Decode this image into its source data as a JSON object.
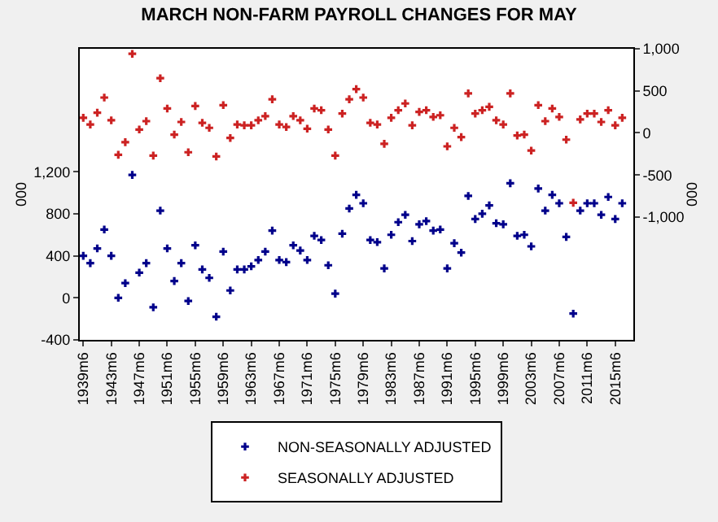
{
  "chart_data": {
    "type": "scatter",
    "title": "MARCH NON-FARM PAYROLL CHANGES FOR MAY",
    "x": [
      "1939-06",
      "1940-06",
      "1941-06",
      "1942-06",
      "1943-06",
      "1944-06",
      "1945-06",
      "1946-06",
      "1947-06",
      "1948-06",
      "1949-06",
      "1950-06",
      "1951-06",
      "1952-06",
      "1953-06",
      "1954-06",
      "1955-06",
      "1956-06",
      "1957-06",
      "1958-06",
      "1959-06",
      "1960-06",
      "1961-06",
      "1962-06",
      "1963-06",
      "1964-06",
      "1965-06",
      "1966-06",
      "1967-06",
      "1968-06",
      "1969-06",
      "1970-06",
      "1971-06",
      "1972-06",
      "1973-06",
      "1974-06",
      "1975-06",
      "1976-06",
      "1977-06",
      "1978-06",
      "1979-06",
      "1980-06",
      "1981-06",
      "1982-06",
      "1983-06",
      "1984-06",
      "1985-06",
      "1986-06",
      "1987-06",
      "1988-06",
      "1989-06",
      "1990-06",
      "1991-06",
      "1992-06",
      "1993-06",
      "1994-06",
      "1995-06",
      "1996-06",
      "1997-06",
      "1998-06",
      "1999-06",
      "2000-06",
      "2001-06",
      "2002-06",
      "2003-06",
      "2004-06",
      "2005-06",
      "2006-06",
      "2007-06",
      "2008-06",
      "2009-06",
      "2010-06",
      "2011-06",
      "2012-06",
      "2013-06",
      "2014-06",
      "2015-06",
      "2016-06"
    ],
    "series": [
      {
        "name": "NON-SEASONALLY ADJUSTED",
        "color": "#00008b",
        "values": [
          400,
          330,
          470,
          650,
          400,
          0,
          140,
          1170,
          240,
          330,
          -90,
          830,
          470,
          160,
          330,
          -30,
          500,
          270,
          190,
          -180,
          440,
          70,
          270,
          270,
          300,
          360,
          440,
          640,
          360,
          340,
          500,
          450,
          360,
          590,
          550,
          310,
          40,
          610,
          850,
          980,
          900,
          550,
          530,
          280,
          600,
          720,
          790,
          540,
          700,
          730,
          640,
          650,
          280,
          520,
          430,
          970,
          750,
          800,
          880,
          710,
          700,
          1090,
          590,
          600,
          490,
          1040,
          830,
          980,
          900,
          580,
          -150,
          830,
          900,
          900,
          790,
          960,
          750,
          900
        ]
      },
      {
        "name": "SEASONALLY ADJUSTED",
        "color": "#cc2222",
        "axis": "y2",
        "values": [
          180,
          100,
          240,
          420,
          150,
          -260,
          -110,
          940,
          40,
          140,
          -270,
          650,
          290,
          -20,
          130,
          -230,
          320,
          120,
          60,
          -280,
          330,
          -60,
          100,
          90,
          90,
          150,
          200,
          400,
          100,
          70,
          200,
          150,
          50,
          290,
          270,
          40,
          -270,
          230,
          400,
          520,
          420,
          120,
          100,
          -130,
          180,
          270,
          350,
          90,
          250,
          270,
          190,
          210,
          -160,
          60,
          -50,
          470,
          230,
          270,
          310,
          150,
          100,
          470,
          -30,
          -20,
          -210,
          330,
          140,
          290,
          190,
          -80,
          -830,
          160,
          230,
          230,
          130,
          270,
          90,
          180
        ]
      }
    ],
    "xlim": [
      "1938-12",
      "2018-01"
    ],
    "xticks": [
      {
        "value": "1939-06",
        "label": "1939m6"
      },
      {
        "value": "1943-06",
        "label": "1943m6"
      },
      {
        "value": "1947-06",
        "label": "1947m6"
      },
      {
        "value": "1951-06",
        "label": "1951m6"
      },
      {
        "value": "1955-06",
        "label": "1955m6"
      },
      {
        "value": "1959-06",
        "label": "1959m6"
      },
      {
        "value": "1963-06",
        "label": "1963m6"
      },
      {
        "value": "1967-06",
        "label": "1967m6"
      },
      {
        "value": "1971-06",
        "label": "1971m6"
      },
      {
        "value": "1975-06",
        "label": "1975m6"
      },
      {
        "value": "1979-06",
        "label": "1979m6"
      },
      {
        "value": "1983-06",
        "label": "1983m6"
      },
      {
        "value": "1987-06",
        "label": "1987m6"
      },
      {
        "value": "1991-06",
        "label": "1991m6"
      },
      {
        "value": "1995-06",
        "label": "1995m6"
      },
      {
        "value": "1999-06",
        "label": "1999m6"
      },
      {
        "value": "2003-06",
        "label": "2003m6"
      },
      {
        "value": "2007-06",
        "label": "2007m6"
      },
      {
        "value": "2011-06",
        "label": "2011m6"
      },
      {
        "value": "2015-06",
        "label": "2015m6"
      }
    ],
    "ylim": [
      -400,
      2370
    ],
    "yticks": [
      {
        "value": -400,
        "label": "-400"
      },
      {
        "value": 0,
        "label": "0"
      },
      {
        "value": 400,
        "label": "400"
      },
      {
        "value": 800,
        "label": "800"
      },
      {
        "value": 1200,
        "label": "1,200"
      }
    ],
    "y2lim": [
      -2460,
      1000
    ],
    "y2ticks": [
      {
        "value": -1000,
        "label": "-1,000"
      },
      {
        "value": -500,
        "label": "-500"
      },
      {
        "value": 0,
        "label": "0"
      },
      {
        "value": 500,
        "label": "500"
      },
      {
        "value": 1000,
        "label": "1,000"
      }
    ],
    "ylabel": "000",
    "y2label": "000",
    "marker": "cross",
    "legend": "bottom"
  }
}
